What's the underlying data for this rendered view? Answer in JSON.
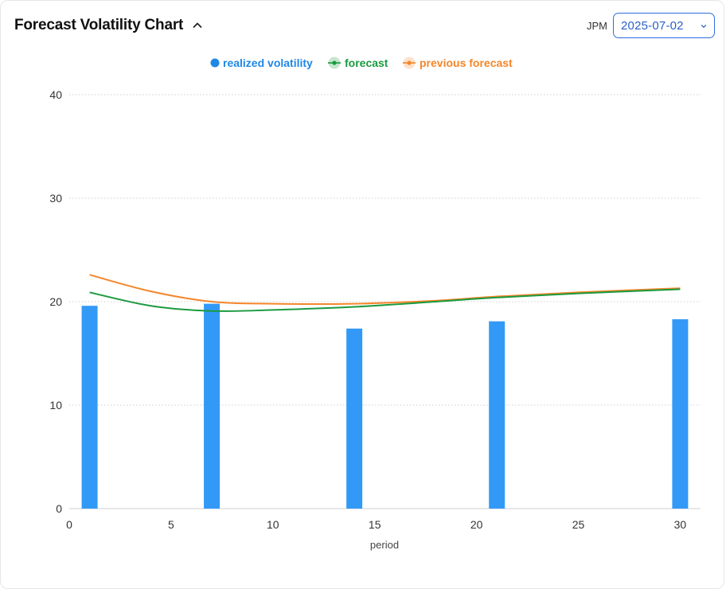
{
  "header": {
    "title": "Forecast Volatility Chart",
    "ticker": "JPM",
    "date_value": "2025-07-02"
  },
  "icons": {
    "collapse": "chevron-up-icon",
    "dropdown": "chevron-down-icon"
  },
  "colors": {
    "realized": "#3399f7",
    "realized_legend": "#1f88e5",
    "forecast": "#1a9a3f",
    "previous": "#f5862a",
    "grid": "#cfcfcf",
    "accent": "#2f6fe0"
  },
  "chart_data": {
    "type": "bar",
    "xlabel": "period",
    "ylabel": "",
    "xlim": [
      0,
      31
    ],
    "ylim": [
      0,
      40
    ],
    "x_ticks": [
      0,
      5,
      10,
      15,
      20,
      25,
      30
    ],
    "y_ticks": [
      0,
      10,
      20,
      30,
      40
    ],
    "grid": "horizontal dotted",
    "legend_position": "top-center",
    "legend": [
      "realized volatility",
      "forecast",
      "previous forecast"
    ],
    "series": [
      {
        "name": "realized volatility",
        "type": "bar",
        "x": [
          1,
          7,
          14,
          21,
          30
        ],
        "values": [
          19.6,
          19.8,
          17.4,
          18.1,
          18.3
        ]
      },
      {
        "name": "forecast",
        "type": "line",
        "x": [
          1,
          4,
          7,
          10,
          14,
          18,
          21,
          25,
          30
        ],
        "values": [
          20.9,
          19.6,
          19.1,
          19.2,
          19.5,
          20.0,
          20.4,
          20.8,
          21.2
        ]
      },
      {
        "name": "previous forecast",
        "type": "line",
        "x": [
          1,
          4,
          7,
          10,
          14,
          18,
          21,
          25,
          30
        ],
        "values": [
          22.6,
          21.0,
          20.0,
          19.8,
          19.8,
          20.1,
          20.5,
          20.9,
          21.3
        ]
      }
    ]
  }
}
